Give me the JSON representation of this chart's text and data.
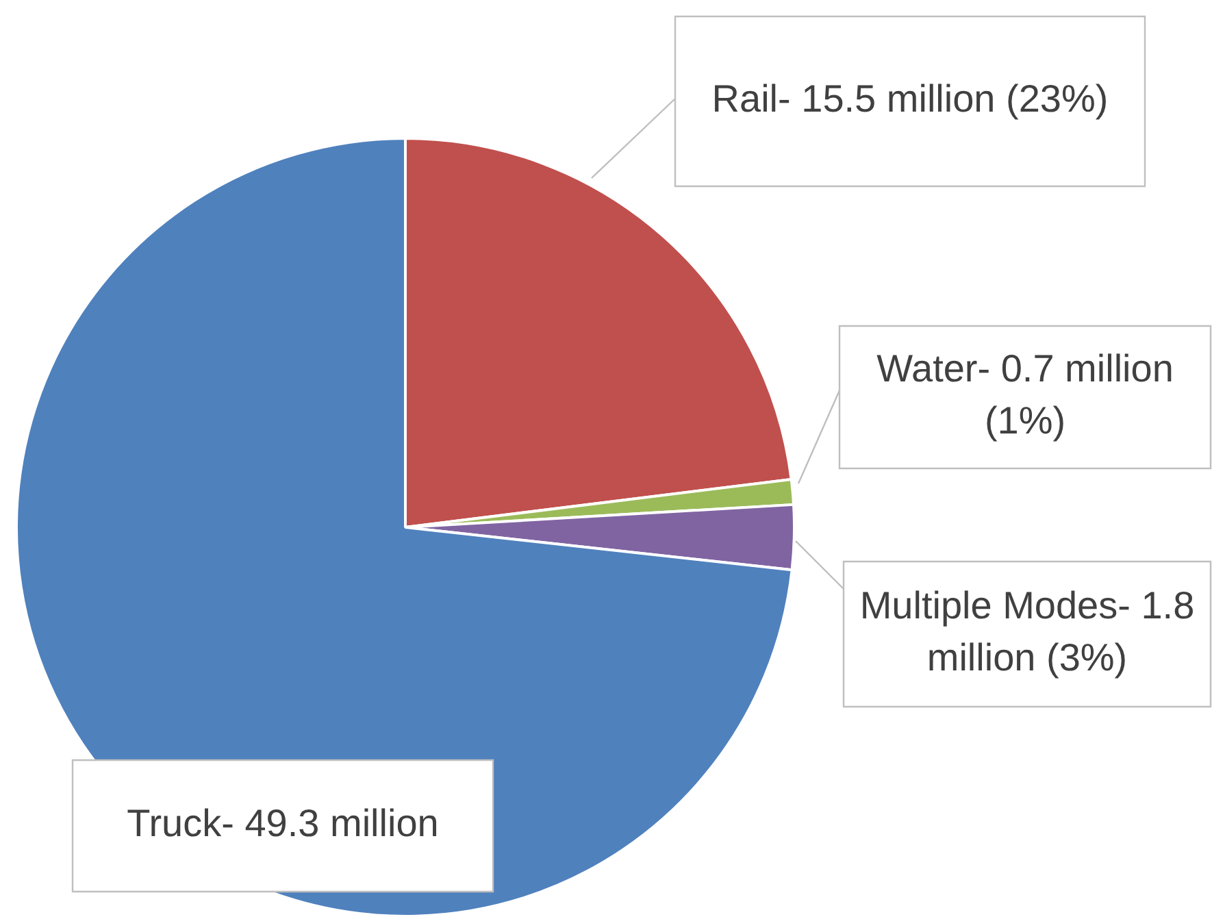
{
  "chart_data": {
    "type": "pie",
    "categories": [
      "Rail- 15.5 million (23%)",
      "Water- 0.7 million (1%)",
      "Multiple Modes- 1.8 million (3%)",
      "Truck- 49.3 million"
    ],
    "values": [
      15.5,
      0.7,
      1.8,
      49.3
    ],
    "colors": [
      "#c0504d",
      "#9bbb59",
      "#8064a2",
      "#4f81bd"
    ]
  }
}
